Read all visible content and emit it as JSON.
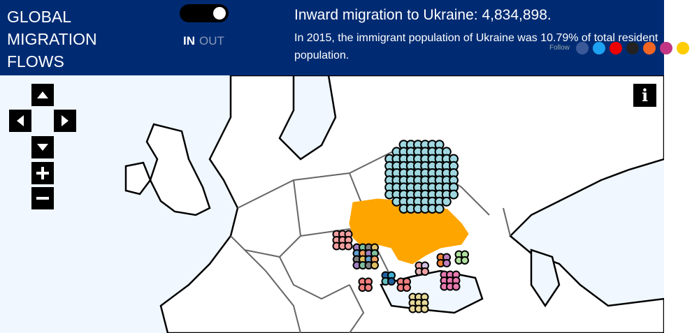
{
  "header": {
    "title": "GLOBAL MIGRATION FLOWS",
    "toggle": {
      "in": "IN",
      "out": "OUT"
    },
    "headline": "Inward migration to Ukraine: 4,834,898.",
    "description": "In 2015, the immigrant population of Ukraine was 10.79% of total resident population.",
    "follow": "Follow"
  },
  "map": {
    "info_button": "i"
  }
}
